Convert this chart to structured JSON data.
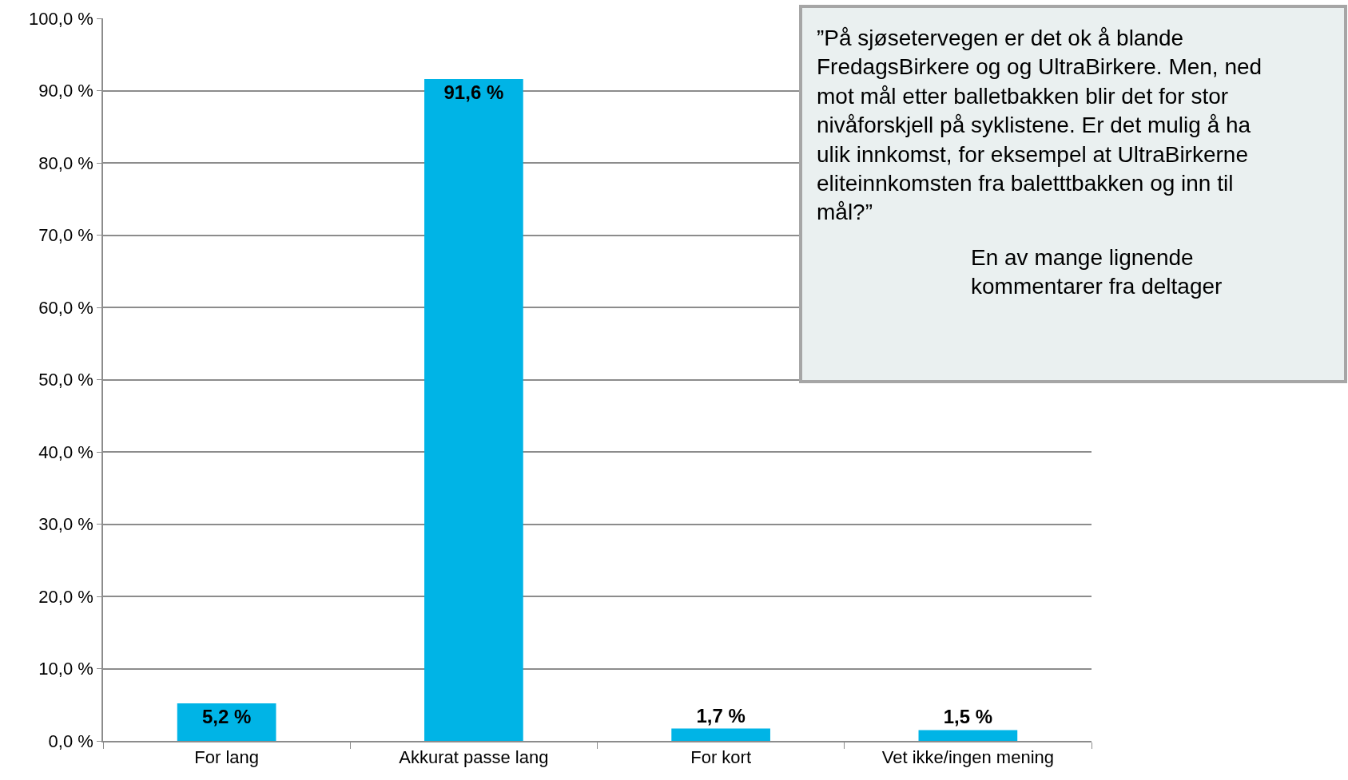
{
  "chart_data": {
    "type": "bar",
    "categories": [
      "For lang",
      "Akkurat passe lang",
      "For kort",
      "Vet ikke/ingen mening"
    ],
    "values": [
      5.2,
      91.6,
      1.7,
      1.5
    ],
    "value_labels": [
      "5,2 %",
      "91,6 %",
      "1,7 %",
      "1,5 %"
    ],
    "color": "#00b4e6",
    "ylim": [
      0,
      100
    ],
    "yticks": [
      {
        "value": 0,
        "label": "0,0 %"
      },
      {
        "value": 10,
        "label": "10,0 %"
      },
      {
        "value": 20,
        "label": "20,0 %"
      },
      {
        "value": 30,
        "label": "30,0 %"
      },
      {
        "value": 40,
        "label": "40,0 %"
      },
      {
        "value": 50,
        "label": "50,0 %"
      },
      {
        "value": 60,
        "label": "60,0 %"
      },
      {
        "value": 70,
        "label": "70,0 %"
      },
      {
        "value": 80,
        "label": "80,0 %"
      },
      {
        "value": 90,
        "label": "90,0 %"
      },
      {
        "value": 100,
        "label": "100,0 %"
      }
    ],
    "grid": "y",
    "annotations": [
      "”På sjøsetervegen er det ok å blande FredagsBirkere og og UltraBirkere. Men, ned mot mål etter balletbakken blir det for stor nivåforskjell på syklistene. Er det mulig å ha ulik innkomst, for eksempel at UltraBirkerne eliteinnkomsten fra baletttbakken og inn til mål?”",
      "En av mange lignende kommentarer fra deltager"
    ]
  }
}
